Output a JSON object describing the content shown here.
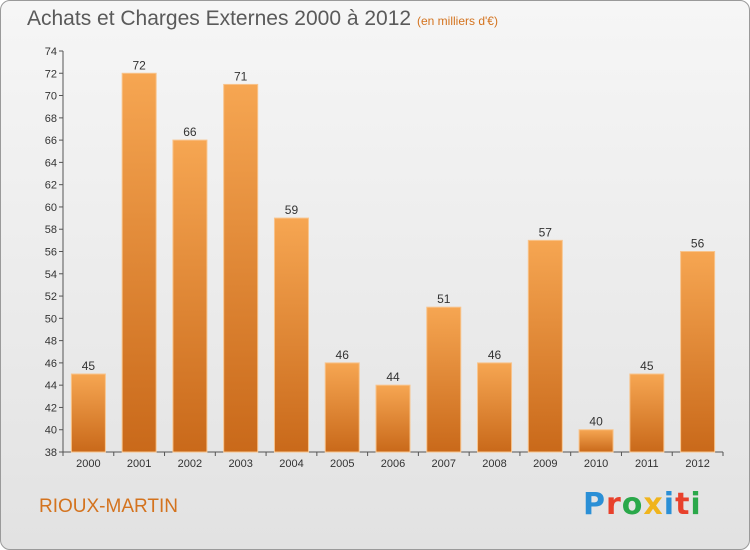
{
  "header": {
    "title": "Achats et Charges Externes 2000 à 2012",
    "subtitle": "(en milliers d'€)"
  },
  "footer": {
    "commune": "RIOUX-MARTIN",
    "logo_text": "Proxiti"
  },
  "colors": {
    "bar_top": "#f6a652",
    "bar_bottom": "#c9691a",
    "title": "#5a5a5a",
    "accent": "#d4731e"
  },
  "chart_data": {
    "type": "bar",
    "title": "Achats et Charges Externes 2000 à 2012",
    "subtitle": "(en milliers d'€)",
    "xlabel": "",
    "ylabel": "",
    "categories": [
      "2000",
      "2001",
      "2002",
      "2003",
      "2004",
      "2005",
      "2006",
      "2007",
      "2008",
      "2009",
      "2010",
      "2011",
      "2012"
    ],
    "values": [
      45,
      72,
      66,
      71,
      59,
      46,
      44,
      51,
      46,
      57,
      40,
      45,
      56
    ],
    "ylim": [
      38,
      74
    ],
    "yticks": [
      38,
      40,
      42,
      44,
      46,
      48,
      50,
      52,
      54,
      56,
      58,
      60,
      62,
      64,
      66,
      68,
      70,
      72,
      74
    ],
    "grid": false,
    "data_labels": true
  }
}
